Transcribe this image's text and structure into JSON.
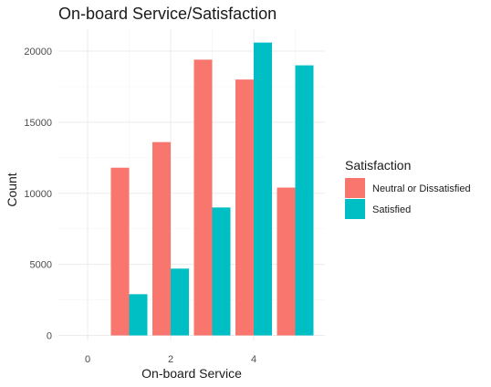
{
  "chart_data": {
    "type": "bar",
    "title": "On-board Service/Satisfaction",
    "xlabel": "On-board Service",
    "ylabel": "Count",
    "categories": [
      0,
      1,
      2,
      3,
      4,
      5
    ],
    "x_ticks": [
      "0",
      "2",
      "4"
    ],
    "y_ticks": [
      "0",
      "5000",
      "10000",
      "15000",
      "20000"
    ],
    "ylim": [
      0,
      21000
    ],
    "xlim": [
      -0.6,
      5.6
    ],
    "grid": true,
    "legend_position": "right",
    "legend_title": "Satisfaction",
    "series": [
      {
        "name": "Neutral or Dissatisfied",
        "color": "#F8766D",
        "values": [
          0,
          11800,
          13600,
          19400,
          18000,
          10400
        ]
      },
      {
        "name": "Satisfied",
        "color": "#00BFC4",
        "values": [
          0,
          2900,
          4700,
          9000,
          20600,
          19000
        ]
      }
    ]
  }
}
